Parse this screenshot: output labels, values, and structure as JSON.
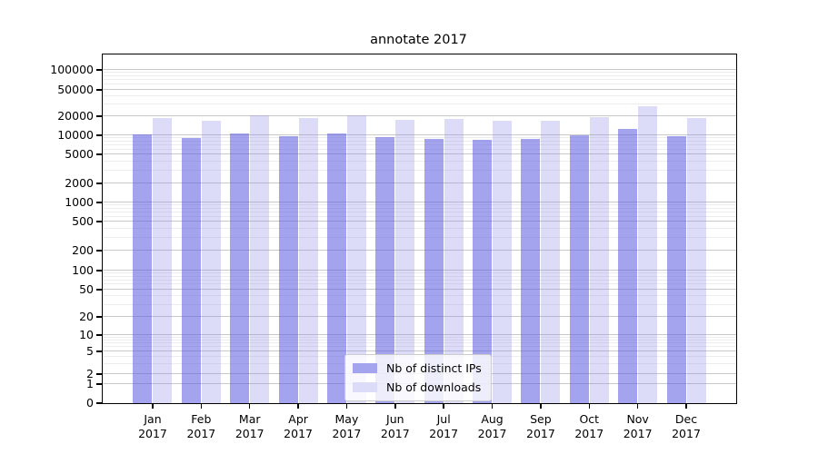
{
  "chart_data": {
    "type": "bar",
    "title": "annotate 2017",
    "x_tick_labels": [
      {
        "month": "Jan",
        "year": "2017"
      },
      {
        "month": "Feb",
        "year": "2017"
      },
      {
        "month": "Mar",
        "year": "2017"
      },
      {
        "month": "Apr",
        "year": "2017"
      },
      {
        "month": "May",
        "year": "2017"
      },
      {
        "month": "Jun",
        "year": "2017"
      },
      {
        "month": "Jul",
        "year": "2017"
      },
      {
        "month": "Aug",
        "year": "2017"
      },
      {
        "month": "Sep",
        "year": "2017"
      },
      {
        "month": "Oct",
        "year": "2017"
      },
      {
        "month": "Nov",
        "year": "2017"
      },
      {
        "month": "Dec",
        "year": "2017"
      }
    ],
    "series": [
      {
        "name": "Nb of distinct IPs",
        "color": "#a3a3ee",
        "fill_rgba": "rgba(88,88,224,0.55)",
        "values": [
          10200,
          9200,
          10700,
          9800,
          10700,
          9400,
          8900,
          8600,
          8700,
          10100,
          12600,
          9700
        ]
      },
      {
        "name": "Nb of downloads",
        "color": "#dcdcf8",
        "fill_rgba": "rgba(138,138,232,0.30)",
        "values": [
          18500,
          17200,
          20900,
          18600,
          20900,
          17500,
          18100,
          17000,
          17100,
          19600,
          28500,
          18700
        ]
      }
    ],
    "y_axis": {
      "scale": "symlog",
      "tick_values": [
        0,
        1,
        2,
        5,
        10,
        20,
        50,
        100,
        200,
        500,
        1000,
        2000,
        5000,
        10000,
        20000,
        50000,
        100000
      ],
      "top_value": 170000
    },
    "grid": {
      "major": true,
      "minor": true
    },
    "legend": {
      "position": "lower center"
    }
  }
}
